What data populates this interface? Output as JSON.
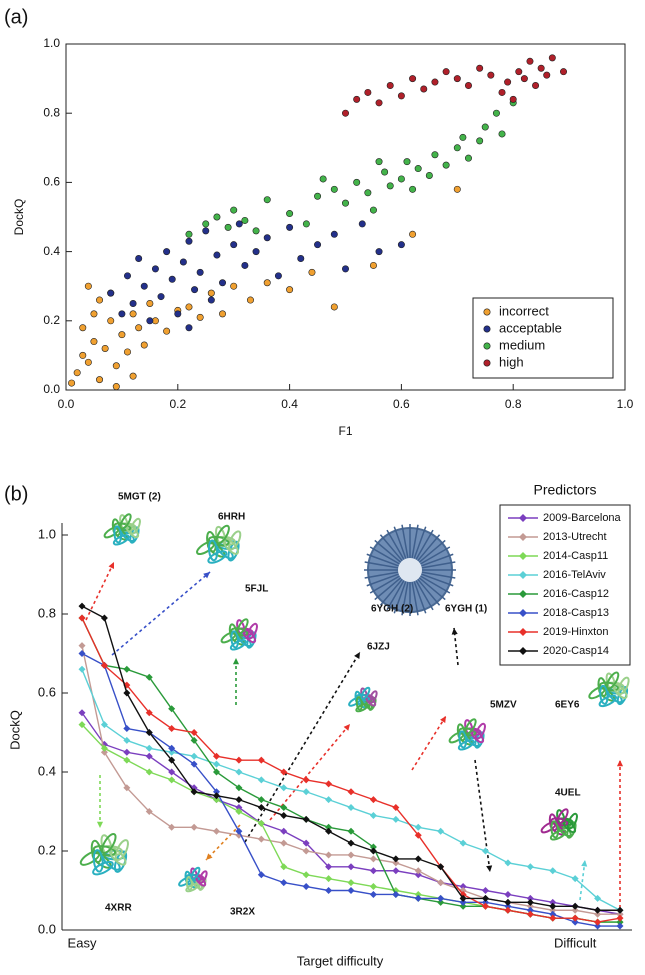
{
  "chart_data": [
    {
      "type": "scatter",
      "panel_label": "(a)",
      "xlabel": "F1",
      "ylabel": "DockQ",
      "xlim": [
        0,
        1
      ],
      "ylim": [
        0,
        1
      ],
      "xticks": [
        {
          "value": 0,
          "label": "0.0"
        },
        0.2,
        0.4,
        0.6,
        0.8,
        {
          "value": 1,
          "label": "1.0"
        }
      ],
      "yticks": [
        {
          "value": 0,
          "label": "0.0"
        },
        0.2,
        0.4,
        0.6,
        0.8,
        {
          "value": 1,
          "label": "1.0"
        }
      ],
      "legend": "lower right",
      "series": [
        {
          "name": "incorrect",
          "color": "#f0a030",
          "x": [
            0.01,
            0.02,
            0.03,
            0.03,
            0.04,
            0.05,
            0.05,
            0.06,
            0.07,
            0.08,
            0.08,
            0.09,
            0.1,
            0.11,
            0.12,
            0.13,
            0.14,
            0.15,
            0.16,
            0.18,
            0.2,
            0.22,
            0.24,
            0.26,
            0.28,
            0.3,
            0.33,
            0.36,
            0.4,
            0.44,
            0.48,
            0.55,
            0.62,
            0.7,
            0.04,
            0.06,
            0.09,
            0.12
          ],
          "values": [
            0.02,
            0.05,
            0.1,
            0.18,
            0.08,
            0.14,
            0.22,
            0.03,
            0.12,
            0.2,
            0.28,
            0.07,
            0.16,
            0.11,
            0.22,
            0.18,
            0.13,
            0.25,
            0.2,
            0.17,
            0.23,
            0.24,
            0.21,
            0.28,
            0.22,
            0.3,
            0.26,
            0.31,
            0.29,
            0.34,
            0.24,
            0.36,
            0.45,
            0.58,
            0.3,
            0.26,
            0.01,
            0.04
          ]
        },
        {
          "name": "acceptable",
          "color": "#23308a",
          "x": [
            0.08,
            0.1,
            0.11,
            0.12,
            0.13,
            0.14,
            0.15,
            0.16,
            0.17,
            0.18,
            0.19,
            0.2,
            0.21,
            0.22,
            0.23,
            0.24,
            0.25,
            0.26,
            0.27,
            0.28,
            0.3,
            0.31,
            0.32,
            0.34,
            0.36,
            0.38,
            0.4,
            0.42,
            0.45,
            0.48,
            0.5,
            0.53,
            0.56,
            0.6,
            0.22
          ],
          "values": [
            0.28,
            0.22,
            0.33,
            0.25,
            0.38,
            0.3,
            0.2,
            0.35,
            0.27,
            0.4,
            0.32,
            0.22,
            0.37,
            0.43,
            0.29,
            0.34,
            0.46,
            0.26,
            0.39,
            0.31,
            0.42,
            0.48,
            0.36,
            0.4,
            0.44,
            0.33,
            0.47,
            0.38,
            0.42,
            0.45,
            0.35,
            0.48,
            0.4,
            0.42,
            0.18
          ]
        },
        {
          "name": "medium",
          "color": "#43b34a",
          "x": [
            0.22,
            0.25,
            0.27,
            0.29,
            0.3,
            0.32,
            0.34,
            0.36,
            0.4,
            0.43,
            0.45,
            0.48,
            0.5,
            0.52,
            0.54,
            0.55,
            0.57,
            0.58,
            0.6,
            0.61,
            0.62,
            0.63,
            0.65,
            0.66,
            0.68,
            0.7,
            0.71,
            0.72,
            0.74,
            0.75,
            0.77,
            0.78,
            0.8,
            0.46,
            0.56
          ],
          "values": [
            0.45,
            0.48,
            0.5,
            0.47,
            0.52,
            0.49,
            0.46,
            0.55,
            0.51,
            0.48,
            0.56,
            0.58,
            0.54,
            0.6,
            0.57,
            0.52,
            0.63,
            0.59,
            0.61,
            0.66,
            0.58,
            0.64,
            0.62,
            0.68,
            0.65,
            0.7,
            0.73,
            0.67,
            0.72,
            0.76,
            0.8,
            0.74,
            0.83,
            0.61,
            0.66
          ]
        },
        {
          "name": "high",
          "color": "#b0202a",
          "x": [
            0.5,
            0.52,
            0.54,
            0.56,
            0.58,
            0.6,
            0.62,
            0.64,
            0.66,
            0.68,
            0.7,
            0.72,
            0.74,
            0.76,
            0.78,
            0.79,
            0.8,
            0.81,
            0.82,
            0.83,
            0.84,
            0.85,
            0.86,
            0.87,
            0.89
          ],
          "values": [
            0.8,
            0.84,
            0.86,
            0.83,
            0.88,
            0.85,
            0.9,
            0.87,
            0.89,
            0.92,
            0.9,
            0.88,
            0.93,
            0.91,
            0.86,
            0.89,
            0.84,
            0.92,
            0.9,
            0.95,
            0.88,
            0.93,
            0.91,
            0.96,
            0.92
          ]
        }
      ]
    },
    {
      "type": "line",
      "panel_label": "(b)",
      "xlabel": "Target difficulty",
      "ylabel": "DockQ",
      "legend_title": "Predictors",
      "legend": "upper right",
      "ylim": [
        0,
        1
      ],
      "yticks": [
        {
          "value": 0,
          "label": "0.0"
        },
        0.2,
        0.4,
        0.6,
        0.8,
        {
          "value": 1,
          "label": "1.0"
        }
      ],
      "categories": [
        "Easy",
        null,
        null,
        null,
        null,
        null,
        null,
        null,
        null,
        null,
        null,
        null,
        null,
        null,
        null,
        null,
        null,
        null,
        null,
        null,
        null,
        null,
        "Difficult",
        null,
        null
      ],
      "series": [
        {
          "name": "2009-Barcelona",
          "color": "#7b3fbf",
          "values": [
            0.55,
            0.47,
            0.45,
            0.44,
            0.4,
            0.36,
            0.33,
            0.31,
            0.27,
            0.25,
            0.22,
            0.16,
            0.16,
            0.15,
            0.15,
            0.14,
            0.12,
            0.11,
            0.1,
            0.09,
            0.08,
            0.07,
            0.06,
            0.05,
            0.04
          ]
        },
        {
          "name": "2013-Utrecht",
          "color": "#c39a94",
          "values": [
            0.72,
            0.45,
            0.36,
            0.3,
            0.26,
            0.26,
            0.25,
            0.24,
            0.23,
            0.22,
            0.2,
            0.19,
            0.19,
            0.18,
            0.17,
            0.15,
            0.12,
            0.1,
            0.08,
            0.07,
            0.06,
            0.05,
            0.05,
            0.04,
            0.04
          ]
        },
        {
          "name": "2014-Casp11",
          "color": "#7ed957",
          "values": [
            0.52,
            0.46,
            0.43,
            0.4,
            0.38,
            0.35,
            0.33,
            0.3,
            0.27,
            0.16,
            0.14,
            0.13,
            0.12,
            0.11,
            0.1,
            0.09,
            0.08,
            0.07,
            0.06,
            0.05,
            0.04,
            0.03,
            0.03,
            0.02,
            0.02
          ]
        },
        {
          "name": "2016-TelAviv",
          "color": "#5bd0d6",
          "values": [
            0.66,
            0.52,
            0.48,
            0.46,
            0.45,
            0.44,
            0.42,
            0.4,
            0.38,
            0.36,
            0.35,
            0.33,
            0.31,
            0.29,
            0.28,
            0.26,
            0.25,
            0.22,
            0.2,
            0.17,
            0.16,
            0.15,
            0.13,
            0.08,
            0.05
          ]
        },
        {
          "name": "2016-Casp12",
          "color": "#2a9a3a",
          "values": [
            0.79,
            0.67,
            0.66,
            0.64,
            0.56,
            0.48,
            0.4,
            0.36,
            0.33,
            0.31,
            0.28,
            0.26,
            0.25,
            0.21,
            0.09,
            0.08,
            0.07,
            0.06,
            0.06,
            0.05,
            0.04,
            0.03,
            0.03,
            0.02,
            0.02
          ]
        },
        {
          "name": "2018-Casp13",
          "color": "#3850c8",
          "values": [
            0.7,
            0.67,
            0.51,
            0.5,
            0.46,
            0.42,
            0.35,
            0.25,
            0.14,
            0.12,
            0.11,
            0.1,
            0.1,
            0.09,
            0.09,
            0.08,
            0.08,
            0.07,
            0.07,
            0.06,
            0.05,
            0.04,
            0.02,
            0.01,
            0.01
          ]
        },
        {
          "name": "2019-Hinxton",
          "color": "#e8302a",
          "values": [
            0.79,
            0.67,
            0.62,
            0.55,
            0.51,
            0.5,
            0.44,
            0.43,
            0.43,
            0.4,
            0.38,
            0.37,
            0.35,
            0.33,
            0.31,
            0.24,
            0.16,
            0.09,
            0.06,
            0.05,
            0.04,
            0.03,
            0.03,
            0.02,
            0.03
          ]
        },
        {
          "name": "2020-Casp14",
          "color": "#111111",
          "values": [
            0.82,
            0.79,
            0.6,
            0.5,
            0.43,
            0.35,
            0.34,
            0.33,
            0.31,
            0.29,
            0.28,
            0.25,
            0.22,
            0.2,
            0.18,
            0.18,
            0.16,
            0.08,
            0.08,
            0.07,
            0.07,
            0.06,
            0.06,
            0.05,
            0.05
          ]
        }
      ],
      "annotations": [
        {
          "text": "5MGT (2)"
        },
        {
          "text": "6HRH"
        },
        {
          "text": "5FJL"
        },
        {
          "text": "6YGH (2)"
        },
        {
          "text": "6YGH (1)"
        },
        {
          "text": "6JZJ"
        },
        {
          "text": "5MZV"
        },
        {
          "text": "6EY6"
        },
        {
          "text": "4UEL"
        },
        {
          "text": "4XRR"
        },
        {
          "text": "3R2X"
        }
      ]
    }
  ]
}
